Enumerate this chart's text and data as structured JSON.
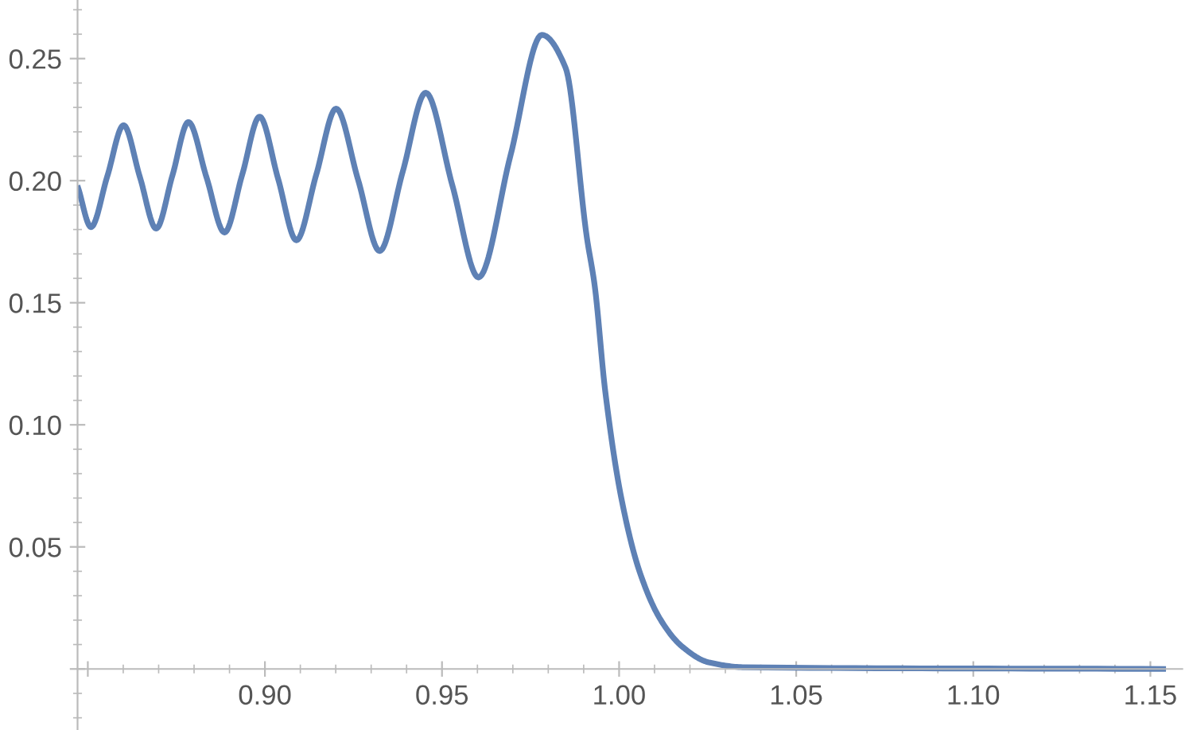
{
  "chart_data": {
    "type": "line",
    "x": [
      0.8473,
      0.8509,
      0.8555,
      0.8601,
      0.8647,
      0.8693,
      0.8739,
      0.8784,
      0.8835,
      0.8886,
      0.8936,
      0.8985,
      0.9037,
      0.9089,
      0.9145,
      0.9201,
      0.9263,
      0.9324,
      0.9389,
      0.9454,
      0.9529,
      0.9603,
      0.9693,
      0.9782,
      0.9849,
      0.9909,
      0.9931,
      0.9961,
      1.0006,
      1.0058,
      1.0117,
      1.0177,
      1.0251,
      1.0354,
      1.1536
    ],
    "series": [
      {
        "color": "#5e81b5",
        "values": [
          0.1969,
          0.181,
          0.2018,
          0.2227,
          0.2015,
          0.1804,
          0.2022,
          0.224,
          0.2014,
          0.1788,
          0.2025,
          0.2262,
          0.2009,
          0.1756,
          0.2025,
          0.2295,
          0.2004,
          0.1712,
          0.2036,
          0.236,
          0.1982,
          0.1604,
          0.2101,
          0.2597,
          0.2462,
          0.1767,
          0.1571,
          0.1136,
          0.0702,
          0.0398,
          0.0202,
          0.0093,
          0.0028,
          0.0007,
          0.0
        ]
      }
    ],
    "xlim": [
      0.8471,
      1.159
    ],
    "ylim": [
      -0.025,
      0.274
    ],
    "xticks": [
      {
        "value": 0.85,
        "label": null
      },
      {
        "value": 0.9,
        "label": "0.90"
      },
      0.95,
      {
        "value": 1,
        "label": "1.00"
      },
      1.05,
      {
        "value": 1.1,
        "label": "1.10"
      },
      1.15
    ],
    "yticks": [
      {
        "value": 0,
        "label": null
      },
      0.05,
      {
        "value": 0.1,
        "label": "0.10"
      },
      0.15,
      {
        "value": 0.2,
        "label": "0.20"
      },
      0.25
    ],
    "grid": false,
    "legend": false,
    "marker": "none",
    "line_style": "solid"
  }
}
